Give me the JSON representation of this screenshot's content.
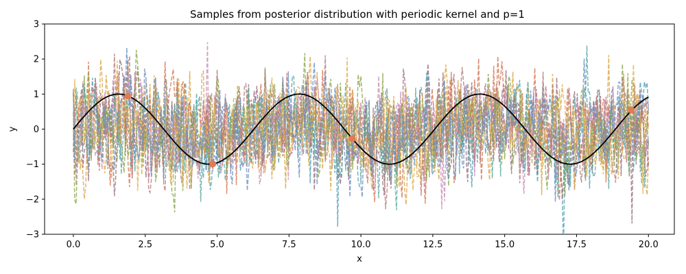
{
  "chart_data": {
    "type": "line",
    "title": "Samples from posterior distribution with periodic kernel and p=1",
    "xlabel": "x",
    "ylabel": "y",
    "xlim": [
      -1.0,
      20.9
    ],
    "ylim": [
      -3,
      3
    ],
    "xticks": [
      "0.0",
      "2.5",
      "5.0",
      "7.5",
      "10.0",
      "12.5",
      "15.0",
      "17.5",
      "20.0"
    ],
    "xtick_values": [
      0,
      2.5,
      5,
      7.5,
      10,
      12.5,
      15,
      17.5,
      20
    ],
    "yticks": [
      "−3",
      "−2",
      "−1",
      "0",
      "1",
      "2",
      "3"
    ],
    "ytick_values": [
      -3,
      -2,
      -1,
      0,
      1,
      2,
      3
    ],
    "grid": false,
    "legend": "none",
    "true_function": {
      "kind": "sin(x)",
      "x_range": [
        0,
        20
      ],
      "color": "#000000"
    },
    "observations": {
      "x": [
        1.9,
        4.85,
        9.7,
        19.4
      ],
      "y": [
        0.94,
        -0.99,
        -0.27,
        0.55
      ],
      "color": "#e07b54"
    },
    "sample_series": {
      "count": 10,
      "style": "dashed",
      "x_range": [
        0,
        20
      ],
      "colors": [
        "#4c9fb5",
        "#d9a441",
        "#9a6b7a",
        "#d4744f",
        "#c98fb8",
        "#5aa8a0",
        "#8aa54a",
        "#b5787a",
        "#e0b050",
        "#6a8fc0"
      ]
    }
  }
}
